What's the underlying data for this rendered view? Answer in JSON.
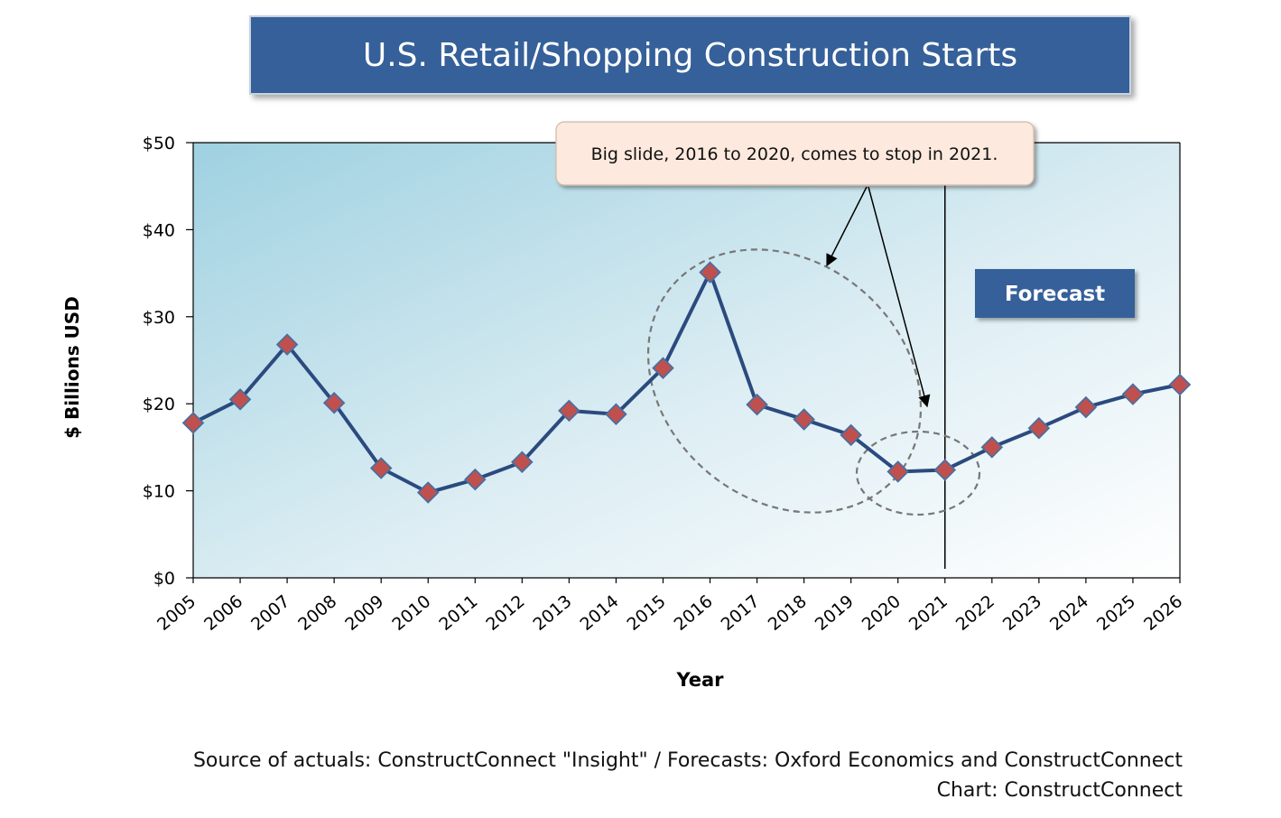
{
  "title": "U.S. Retail/Shopping Construction Starts",
  "source_line1": "Source of actuals: ConstructConnect \"Insight\" / Forecasts: Oxford Economics and ConstructConnect",
  "source_line2": "Chart: ConstructConnect",
  "annotation": "Big slide, 2016 to 2020, comes to stop in 2021.",
  "forecast_label": "Forecast",
  "colors": {
    "title_bg": "#35609a",
    "line": "#2b4a7e",
    "marker": "#c0504d",
    "forecast_bg": "#35609a",
    "callout_bg": "#fde9dd"
  },
  "chart_data": {
    "type": "line",
    "title": "U.S. Retail/Shopping Construction Starts",
    "xlabel": "Year",
    "ylabel": "$ Billions USD",
    "ylim": [
      0,
      50
    ],
    "y_ticks": [
      "$0",
      "$10",
      "$20",
      "$30",
      "$40",
      "$50"
    ],
    "categories": [
      "2005",
      "2006",
      "2007",
      "2008",
      "2009",
      "2010",
      "2011",
      "2012",
      "2013",
      "2014",
      "2015",
      "2016",
      "2017",
      "2018",
      "2019",
      "2020",
      "2021",
      "2022",
      "2023",
      "2024",
      "2025",
      "2026"
    ],
    "series": [
      {
        "values": [
          17.8,
          20.5,
          26.8,
          20.1,
          12.6,
          9.8,
          11.3,
          13.3,
          19.2,
          18.8,
          24.1,
          35.1,
          19.9,
          18.2,
          16.4,
          12.2,
          12.4,
          15.0,
          17.2,
          19.6,
          21.1,
          22.2
        ]
      }
    ],
    "forecast_start": "2021",
    "grid": false
  }
}
